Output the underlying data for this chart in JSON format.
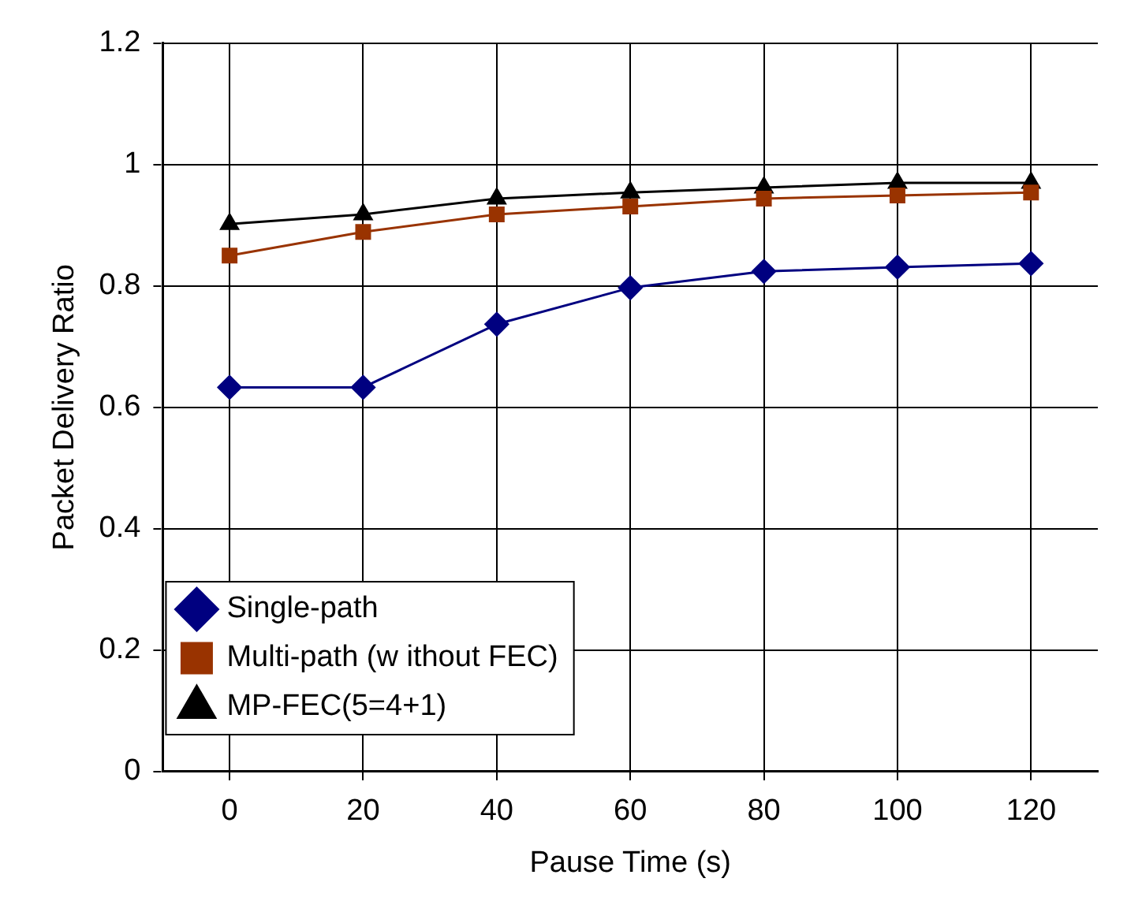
{
  "chart_data": {
    "type": "line",
    "xlabel": "Pause Time (s)",
    "ylabel": "Packet Delivery Ratio",
    "x": [
      0,
      20,
      40,
      60,
      80,
      100,
      120
    ],
    "series": [
      {
        "name": "Single-path",
        "color": "#000080",
        "marker": "diamond",
        "values": [
          0.633,
          0.633,
          0.737,
          0.797,
          0.824,
          0.831,
          0.837
        ]
      },
      {
        "name": "Multi-path (w ithout FEC)",
        "color": "#993300",
        "marker": "square",
        "values": [
          0.85,
          0.889,
          0.918,
          0.931,
          0.944,
          0.949,
          0.954
        ]
      },
      {
        "name": "MP-FEC(5=4+1)",
        "color": "#000000",
        "marker": "triangle",
        "values": [
          0.902,
          0.918,
          0.944,
          0.954,
          0.962,
          0.97,
          0.97
        ]
      }
    ],
    "xlim": [
      -10,
      130
    ],
    "xticks": [
      0,
      20,
      40,
      60,
      80,
      100,
      120
    ],
    "ylim": [
      0,
      1.2
    ],
    "yticks": [
      0,
      0.2,
      0.4,
      0.6,
      0.8,
      1,
      1.2
    ],
    "grid": true,
    "legend": "bottom",
    "line_style": "solid"
  }
}
